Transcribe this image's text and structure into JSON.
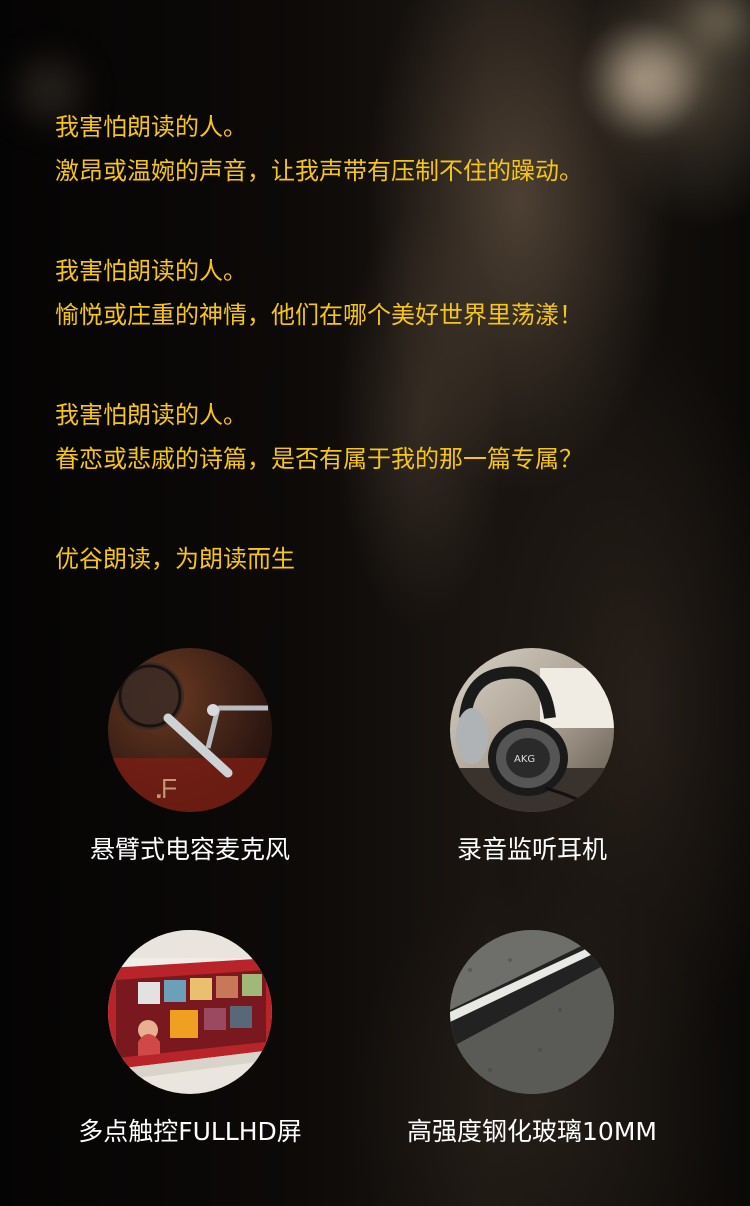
{
  "poem": {
    "stanzas": [
      {
        "line1": "我害怕朗读的人。",
        "line2": "激昂或温婉的声音，让我声带有压制不住的躁动。"
      },
      {
        "line1": "我害怕朗读的人。",
        "line2": "愉悦或庄重的神情，他们在哪个美好世界里荡漾！"
      },
      {
        "line1": "我害怕朗读的人。",
        "line2": "眷恋或悲戚的诗篇，是否有属于我的那一篇专属？"
      }
    ],
    "slogan": "优谷朗读，为朗读而生"
  },
  "features": [
    {
      "label": "悬臂式电容麦克风",
      "icon": "microphone-photo"
    },
    {
      "label": "录音监听耳机",
      "icon": "headphones-photo"
    },
    {
      "label": "多点触控FULLHD屏",
      "icon": "touchscreen-photo"
    },
    {
      "label": "高强度钢化玻璃10MM",
      "icon": "tempered-glass-photo"
    }
  ],
  "colors": {
    "poem_text": "#f5c518",
    "caption_text": "#ffffff",
    "background": "#0a0807"
  }
}
